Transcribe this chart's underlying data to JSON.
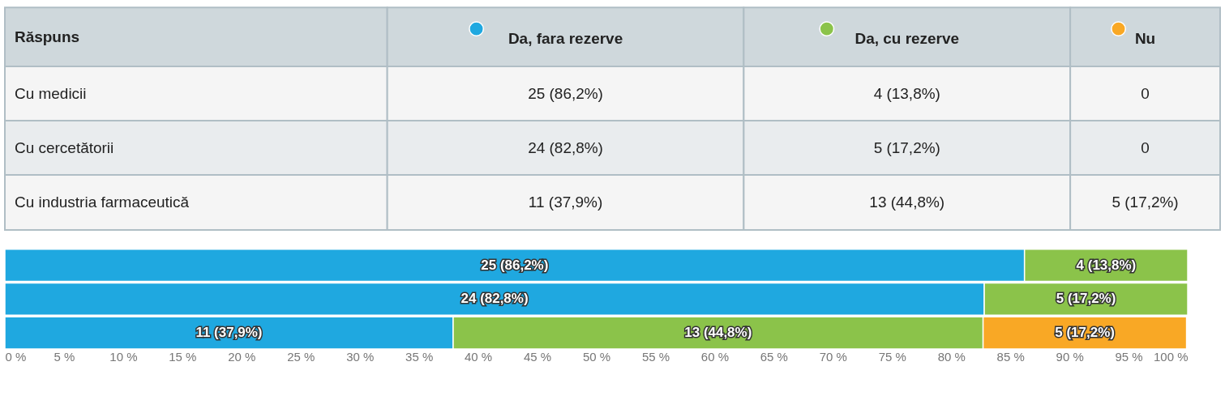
{
  "chart_data": {
    "type": "bar",
    "orientation": "horizontal",
    "stacked": true,
    "legend_title": "Răspuns",
    "legend": "top",
    "categories": [
      null,
      null,
      null
    ],
    "annotations": [
      "Cu medicii",
      "Cu cercetătorii",
      "Cu industria farmaceutică"
    ],
    "series": [
      {
        "name": "Da, fara rezerve",
        "color": "#1fa8e0",
        "values": [
          86.2,
          82.8,
          37.9
        ],
        "value_labels": [
          "25 (86,2%)",
          "24 (82,8%)",
          "11 (37,9%)"
        ]
      },
      {
        "name": "Da, cu rezerve",
        "color": "#8bc34a",
        "values": [
          13.8,
          17.2,
          44.8
        ],
        "value_labels": [
          "4 (13,8%)",
          "5 (17,2%)",
          "13 (44,8%)"
        ]
      },
      {
        "name": "Nu",
        "color": "#f9a825",
        "values": [
          null,
          null,
          17.2
        ],
        "value_labels": [
          "0",
          "0",
          "5 (17,2%)"
        ]
      }
    ],
    "xlim": [
      0,
      100
    ],
    "xticks": [
      {
        "value": 0,
        "label": "0 %"
      },
      {
        "value": 5,
        "label": "5 %"
      },
      {
        "value": 10,
        "label": "10 %"
      },
      {
        "value": 15,
        "label": "15 %"
      },
      {
        "value": 20,
        "label": "20 %"
      },
      {
        "value": 25,
        "label": "25 %"
      },
      {
        "value": 30,
        "label": "30 %"
      },
      {
        "value": 35,
        "label": "35 %"
      },
      {
        "value": 40,
        "label": "40 %"
      },
      {
        "value": 45,
        "label": "45 %"
      },
      {
        "value": 50,
        "label": "50 %"
      },
      {
        "value": 55,
        "label": "55 %"
      },
      {
        "value": 60,
        "label": "60 %"
      },
      {
        "value": 65,
        "label": "65 %"
      },
      {
        "value": 70,
        "label": "70 %"
      },
      {
        "value": 75,
        "label": "75 %"
      },
      {
        "value": 80,
        "label": "80 %"
      },
      {
        "value": 85,
        "label": "85 %"
      },
      {
        "value": 90,
        "label": "90 %"
      },
      {
        "value": 95,
        "label": "95 %"
      },
      {
        "value": 100,
        "label": "100 %"
      }
    ],
    "tick_labels": "x",
    "grid": false
  }
}
